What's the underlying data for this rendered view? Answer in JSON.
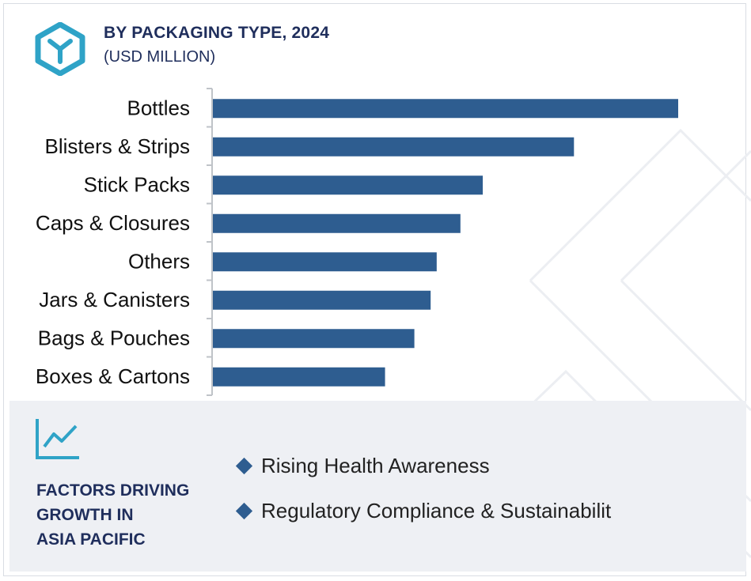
{
  "header": {
    "title": "BY PACKAGING TYPE, 2024",
    "subtitle": "(USD MILLION)"
  },
  "colors": {
    "bar": "#2e5d90",
    "title": "#1f2e5c",
    "accent": "#2fa3c7",
    "panel_bg": "#eef0f4"
  },
  "icons": {
    "logo": "box-y-logo-icon",
    "growth": "line-chart-growth-icon",
    "bullet": "diamond-bullet-icon"
  },
  "chart_data": {
    "type": "bar",
    "orientation": "horizontal",
    "title": "BY PACKAGING TYPE, 2024",
    "subtitle": "(USD MILLION)",
    "categories": [
      "Bottles",
      "Blisters & Strips",
      "Stick Packs",
      "Caps & Closures",
      "Others",
      "Jars & Canisters",
      "Bags & Pouches",
      "Boxes & Cartons"
    ],
    "values": [
      100,
      77.6,
      58,
      53.2,
      48.1,
      46.8,
      43.3,
      37
    ],
    "xlim": [
      0,
      100
    ],
    "xlabel": "",
    "ylabel": "",
    "grid": false,
    "value_axis_visible": false
  },
  "factors": {
    "title_lines": [
      "FACTORS DRIVING",
      "GROWTH IN",
      "ASIA PACIFIC"
    ],
    "items": [
      {
        "label": "Rising Health Awareness"
      },
      {
        "label": "Regulatory Compliance & Sustainabilit"
      }
    ]
  }
}
